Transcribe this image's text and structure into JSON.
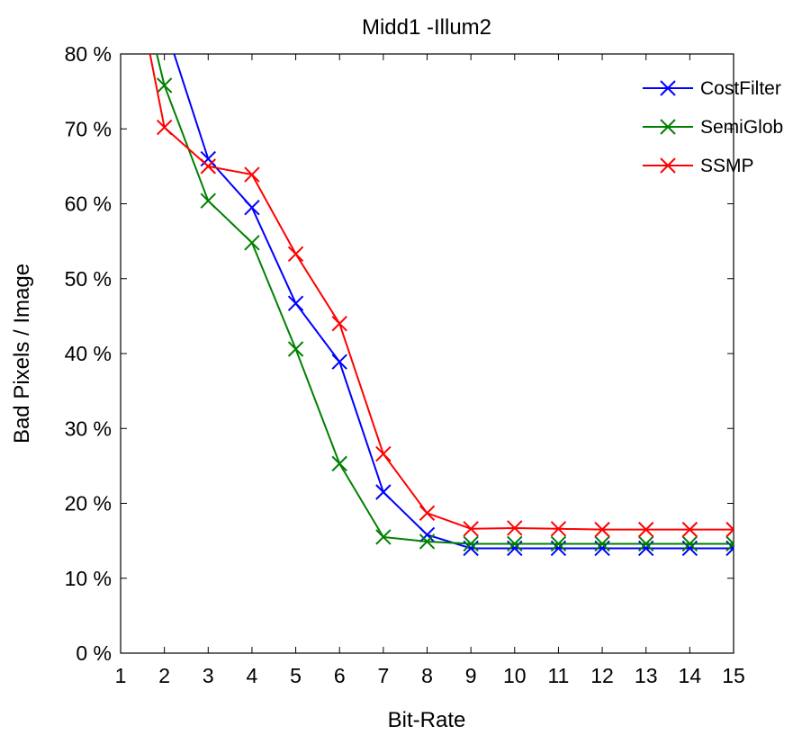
{
  "chart_data": {
    "type": "line",
    "title": "Midd1 -Illum2",
    "xlabel": "Bit-Rate",
    "ylabel": "Bad Pixels / Image",
    "xlim": [
      1,
      15
    ],
    "ylim": [
      0,
      80
    ],
    "x_ticks": [
      "1",
      "2",
      "3",
      "4",
      "5",
      "6",
      "7",
      "8",
      "9",
      "10",
      "11",
      "12",
      "13",
      "14",
      "15"
    ],
    "y_ticks": [
      "0 %",
      "10 %",
      "20 %",
      "30 %",
      "40 %",
      "50 %",
      "60 %",
      "70 %",
      "80 %"
    ],
    "grid": false,
    "legend_position": "top-right",
    "marker": "x",
    "series": [
      {
        "name": "CostFilter",
        "color": "#0000ff",
        "x": [
          1,
          2,
          3,
          4,
          5,
          6,
          7,
          8,
          9,
          10,
          11,
          12,
          13,
          14,
          15
        ],
        "values": [
          100,
          84,
          66,
          59.5,
          46.7,
          38.9,
          21.5,
          15.8,
          14.0,
          14.0,
          14.0,
          14.0,
          14.0,
          14.0,
          14.0
        ]
      },
      {
        "name": "SemiGlob",
        "color": "#008000",
        "x": [
          1,
          2,
          3,
          4,
          5,
          6,
          7,
          8,
          9,
          10,
          11,
          12,
          13,
          14,
          15
        ],
        "values": [
          100,
          75.8,
          60.4,
          54.8,
          40.6,
          25.3,
          15.5,
          14.9,
          14.6,
          14.6,
          14.6,
          14.6,
          14.6,
          14.6,
          14.6
        ]
      },
      {
        "name": "SSMP",
        "color": "#ff0000",
        "x": [
          1,
          2,
          3,
          4,
          5,
          6,
          7,
          8,
          9,
          10,
          11,
          12,
          13,
          14,
          15
        ],
        "values": [
          100,
          70.2,
          65.0,
          63.9,
          53.3,
          44.0,
          26.6,
          18.7,
          16.6,
          16.7,
          16.6,
          16.5,
          16.5,
          16.5,
          16.5
        ]
      }
    ]
  }
}
